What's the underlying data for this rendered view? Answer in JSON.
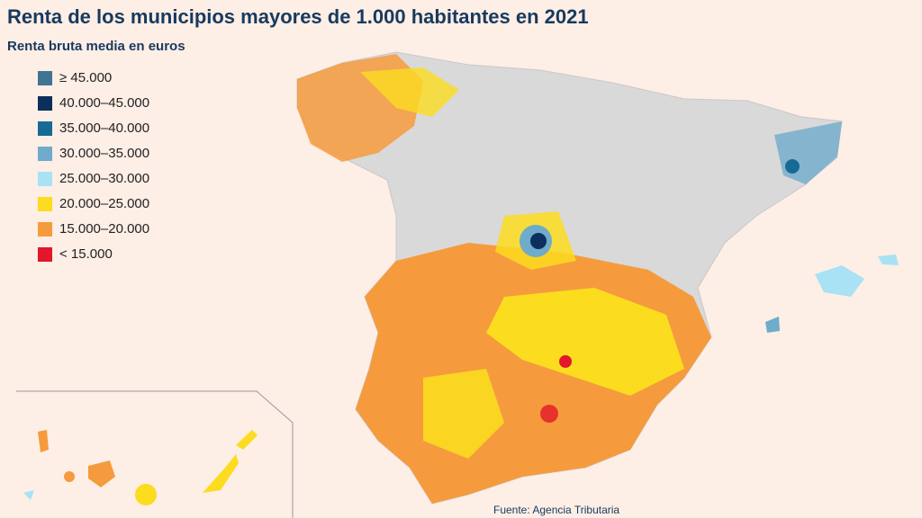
{
  "header": {
    "title": "Renta de los municipios mayores de 1.000 habitantes en 2021",
    "subtitle": "Renta bruta media en euros"
  },
  "legend": {
    "items": [
      {
        "label": "≥ 45.000",
        "color": "#3e7592"
      },
      {
        "label": "40.000–45.000",
        "color": "#0c2f5c"
      },
      {
        "label": "35.000–40.000",
        "color": "#176a96"
      },
      {
        "label": "30.000–35.000",
        "color": "#6fabca"
      },
      {
        "label": "25.000–30.000",
        "color": "#a8e2f4"
      },
      {
        "label": "20.000–25.000",
        "color": "#fbdc1f"
      },
      {
        "label": "15.000–20.000",
        "color": "#f59b3d"
      },
      {
        "label": "< 15.000",
        "color": "#e3162b"
      }
    ]
  },
  "source": "Fuente: Agencia Tributaria"
}
